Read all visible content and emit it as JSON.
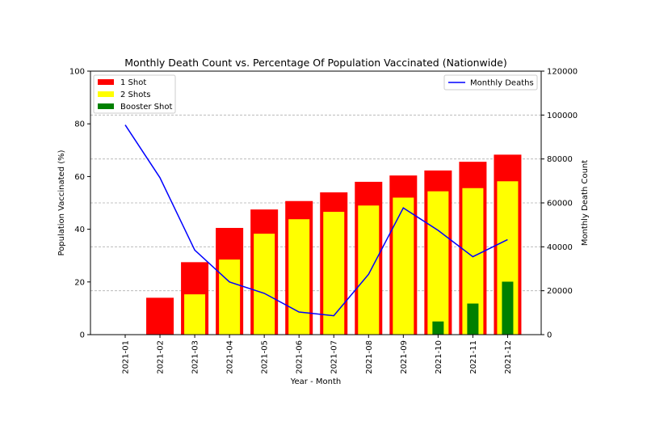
{
  "chart_data": {
    "type": "bar",
    "title": "Monthly Death Count vs. Percentage Of Population Vaccinated (Nationwide)",
    "xlabel": "Year - Month",
    "ylabel": "Population Vaccinated (%)",
    "y2label": "Monthly Death Count",
    "categories": [
      "2021-01",
      "2021-02",
      "2021-03",
      "2021-04",
      "2021-05",
      "2021-06",
      "2021-07",
      "2021-08",
      "2021-09",
      "2021-10",
      "2021-11",
      "2021-12"
    ],
    "ylim": [
      0,
      100
    ],
    "y_ticks": [
      "0",
      "20",
      "40",
      "60",
      "80",
      "100"
    ],
    "y2lim": [
      0,
      120000
    ],
    "y2_ticks": [
      "0",
      "20000",
      "40000",
      "60000",
      "80000",
      "100000",
      "120000"
    ],
    "grid": "horizontal dashed (right axis)",
    "series": [
      {
        "name": "1 Shot",
        "type": "bar",
        "axis": "left",
        "color": "#ff0000",
        "values": [
          0,
          14,
          27.5,
          40.5,
          47.5,
          50.7,
          54,
          58,
          60.4,
          62.3,
          65.6,
          68.3
        ]
      },
      {
        "name": "2 Shots",
        "type": "bar",
        "axis": "left",
        "color": "#ffff00",
        "values": [
          0,
          0,
          15.3,
          28.5,
          38.3,
          43.8,
          46.6,
          49,
          52,
          54.4,
          55.6,
          58.2
        ]
      },
      {
        "name": "Booster Shot",
        "type": "bar",
        "axis": "left",
        "color": "#008000",
        "values": [
          0,
          0,
          0,
          0,
          0,
          0,
          0,
          0,
          0,
          5,
          11.8,
          20.1
        ]
      },
      {
        "name": "Monthly Deaths",
        "type": "line",
        "axis": "right",
        "color": "#0000ff",
        "values": [
          95500,
          71500,
          38500,
          24000,
          18800,
          10300,
          8600,
          27500,
          57700,
          47500,
          35500,
          43300
        ]
      }
    ],
    "legend_left": "upper-left",
    "legend_right": "upper-right"
  }
}
